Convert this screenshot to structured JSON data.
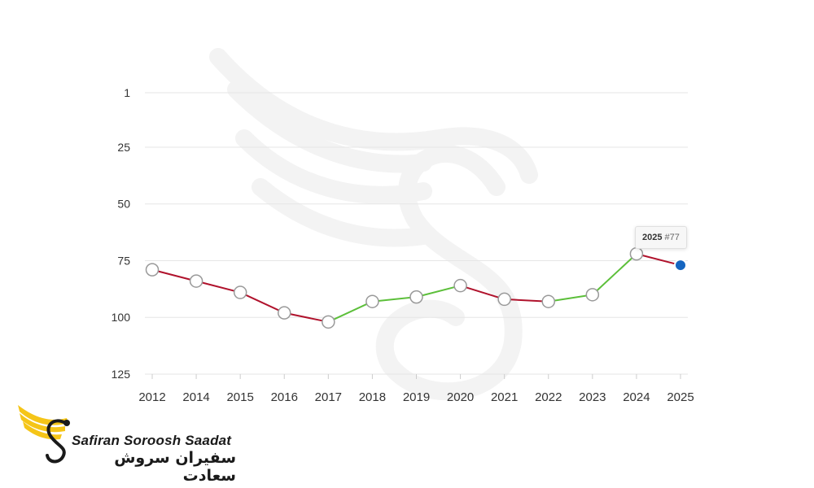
{
  "chart_data": {
    "type": "line",
    "x": [
      "2012",
      "2014",
      "2015",
      "2016",
      "2017",
      "2018",
      "2019",
      "2020",
      "2021",
      "2022",
      "2023",
      "2024",
      "2025"
    ],
    "values": [
      79,
      84,
      89,
      98,
      102,
      93,
      91,
      86,
      92,
      93,
      90,
      72,
      77
    ],
    "ylim": [
      125,
      1
    ],
    "yticks": [
      1,
      25,
      50,
      75,
      100,
      125
    ],
    "y_reversed": true,
    "title": "",
    "xlabel": "",
    "ylabel": "",
    "grid": true,
    "colors": {
      "decline": "#b0122c",
      "rise": "#5cbf3a",
      "highlight": "#1565c0",
      "grid": "#e6e6e6"
    }
  },
  "tooltip": {
    "year": "2025",
    "rank": "#77"
  },
  "logo": {
    "en": "Safiran Soroosh Saadat",
    "fa": "سفیران سروش سعادت"
  }
}
